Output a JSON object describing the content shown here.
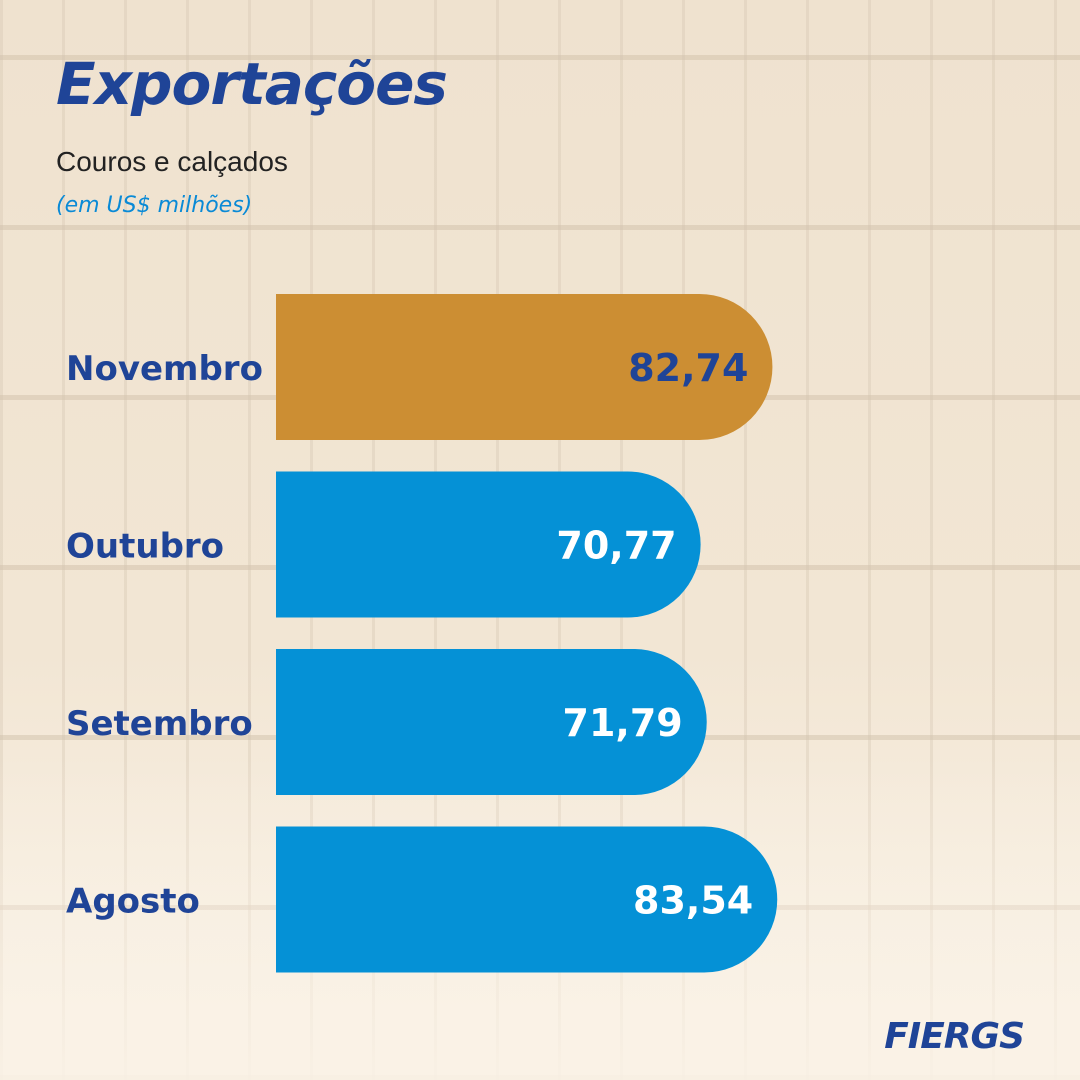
{
  "header": {
    "title": "Exportações",
    "subtitle": "Couros e calçados",
    "unit": "(em US$ milhões)"
  },
  "chart_data": {
    "type": "bar",
    "orientation": "horizontal",
    "title": "Exportações",
    "subtitle": "Couros e calçados",
    "ylabel": "(em US$ milhões)",
    "categories": [
      "Novembro",
      "Outubro",
      "Setembro",
      "Agosto"
    ],
    "values": [
      82.74,
      70.77,
      71.79,
      83.54
    ],
    "value_labels": [
      "82,74",
      "70,77",
      "71,79",
      "83,54"
    ],
    "highlight_color": "#cc8e33",
    "bar_color": "#0591d6",
    "label_color": "#1f4497",
    "highlight_index": 0
  },
  "footer": {
    "logo": "FIERGS"
  }
}
